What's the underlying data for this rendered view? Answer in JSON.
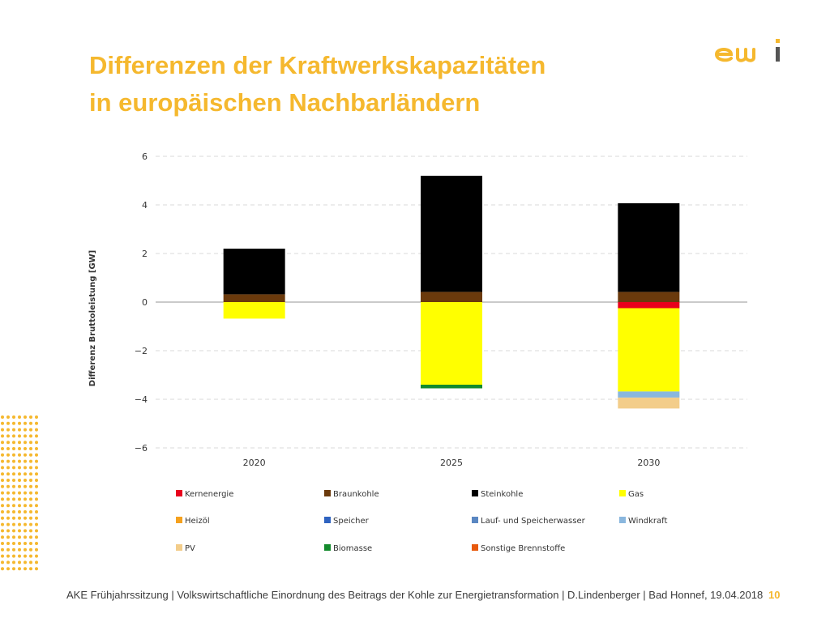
{
  "slide": {
    "title_line1": "Differenzen der Kraftwerkskapazitäten",
    "title_line2": "in europäischen Nachbarländern",
    "footer": "AKE Frühjahrssitzung | Volkswirtschaftliche Einordnung des Beitrags der Kohle zur Energietransformation | D.Lindenberger | Bad Honnef, 19.04.2018",
    "page_number": "10",
    "logo_text": "ewi",
    "accent_color": "#f5b82e"
  },
  "chart_data": {
    "type": "bar",
    "stacked": true,
    "title": "",
    "xlabel": "",
    "ylabel": "Differenz Bruttoleistung [GW]",
    "ylim": [
      -6,
      6
    ],
    "yticks": [
      6,
      4,
      2,
      0,
      -2,
      -4,
      -6
    ],
    "ytick_labels": [
      "6",
      "4",
      "2",
      "0",
      "−2",
      "−4",
      "−6"
    ],
    "grid": true,
    "legend_position": "bottom",
    "categories": [
      "2020",
      "2025",
      "2030"
    ],
    "series": [
      {
        "name": "Kernenergie",
        "color": "#e8001c",
        "values": [
          0,
          0,
          -0.25
        ]
      },
      {
        "name": "Braunkohle",
        "color": "#6b3a0c",
        "values": [
          0.32,
          0.42,
          0.42
        ]
      },
      {
        "name": "Steinkohle",
        "color": "#000000",
        "values": [
          1.88,
          4.78,
          3.65
        ]
      },
      {
        "name": "Gas",
        "color": "#ffff00",
        "values": [
          -0.68,
          -3.4,
          -3.43
        ]
      },
      {
        "name": "Heizöl",
        "color": "#f5a11e",
        "values": [
          0,
          0,
          0
        ]
      },
      {
        "name": "Speicher",
        "color": "#2f63c0",
        "values": [
          0,
          0,
          0
        ]
      },
      {
        "name": "Lauf- und Speicherwasser",
        "color": "#5a87c2",
        "values": [
          0,
          0,
          0
        ]
      },
      {
        "name": "Windkraft",
        "color": "#8ab7de",
        "values": [
          0,
          0,
          -0.25
        ]
      },
      {
        "name": "PV",
        "color": "#f3cd8a",
        "values": [
          0,
          0,
          -0.45
        ]
      },
      {
        "name": "Biomasse",
        "color": "#138a2c",
        "values": [
          0,
          -0.15,
          0
        ]
      },
      {
        "name": "Sonstige Brennstoffe",
        "color": "#e8590c",
        "values": [
          0,
          0,
          0
        ]
      }
    ]
  }
}
